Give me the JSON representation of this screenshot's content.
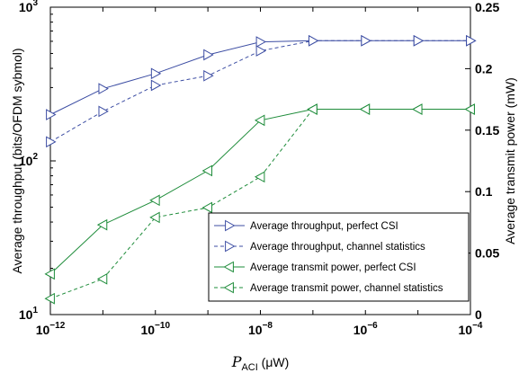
{
  "chart_data": {
    "type": "line",
    "x": [
      1e-12,
      1e-11,
      1e-10,
      1e-09,
      1e-08,
      1e-07,
      1e-06,
      1e-05,
      0.0001
    ],
    "x_scale": "log",
    "xlim": [
      1e-12,
      0.0001
    ],
    "x_ticks": [
      {
        "value": 1e-12,
        "base": "10",
        "exp": "−12"
      },
      {
        "value": 1e-10,
        "base": "10",
        "exp": "−10"
      },
      {
        "value": 1e-08,
        "base": "10",
        "exp": "−8"
      },
      {
        "value": 1e-06,
        "base": "10",
        "exp": "−6"
      },
      {
        "value": 0.0001,
        "base": "10",
        "exp": "−4"
      }
    ],
    "xlabel": {
      "symbol": "P",
      "subscript": "ACI",
      "unit": " (μW)"
    },
    "y_left": {
      "label": "Average throughput (bits/OFDM sybmol)",
      "scale": "log",
      "lim": [
        10,
        1000
      ],
      "ticks": [
        {
          "value": 10,
          "base": "10",
          "exp": "1"
        },
        {
          "value": 100,
          "base": "10",
          "exp": "2"
        },
        {
          "value": 1000,
          "base": "10",
          "exp": "3"
        }
      ]
    },
    "y_right": {
      "label": "Average transmit power (mW)",
      "scale": "linear",
      "lim": [
        0,
        0.25
      ],
      "ticks": [
        "0",
        "0.05",
        "0.1",
        "0.15",
        "0.2",
        "0.25"
      ]
    },
    "series": [
      {
        "name": "Average throughput, perfect CSI",
        "axis": "left",
        "marker": "right-triangle",
        "dash": "solid",
        "color": "#3c4da3",
        "values": [
          200,
          295,
          370,
          490,
          595,
          605,
          605,
          605,
          605
        ]
      },
      {
        "name": "Average throughput, channel statistics",
        "axis": "left",
        "marker": "right-triangle",
        "dash": "dashed",
        "color": "#3c4da3",
        "values": [
          133,
          210,
          310,
          358,
          520,
          605,
          605,
          605,
          605
        ]
      },
      {
        "name": "Average transmit power, perfect CSI",
        "axis": "right",
        "marker": "left-triangle",
        "dash": "solid",
        "color": "#1e8c3a",
        "values": [
          0.033,
          0.073,
          0.093,
          0.117,
          0.158,
          0.167,
          0.167,
          0.167,
          0.167
        ]
      },
      {
        "name": "Average transmit power, channel statistics",
        "axis": "right",
        "marker": "left-triangle",
        "dash": "dashed",
        "color": "#1e8c3a",
        "values": [
          0.013,
          0.029,
          0.079,
          0.087,
          0.112,
          0.167,
          0.167,
          0.167,
          0.167
        ]
      }
    ],
    "grid": false,
    "legend_position": "bottom-right"
  }
}
